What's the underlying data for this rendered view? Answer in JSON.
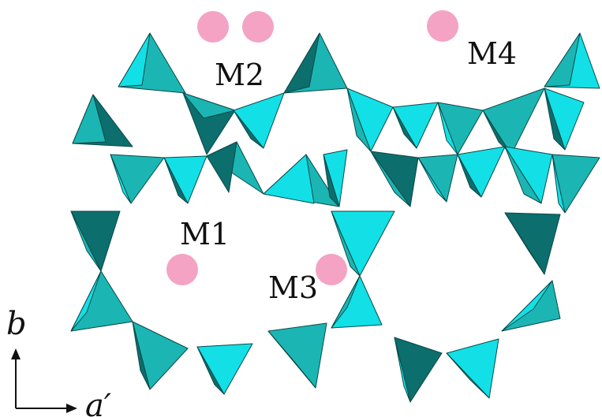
{
  "figure": {
    "colors": {
      "tetra_light": "#12e0e6",
      "tetra_mid": "#1bb6b3",
      "tetra_dark": "#0c6e6d",
      "cation": "#f4a3c4",
      "edge": "#0a4a4a",
      "background": "#ffffff"
    },
    "sites": {
      "m1": "M1",
      "m2": "M2",
      "m3": "M3",
      "m4": "M4"
    },
    "axes": {
      "vertical": "b",
      "horizontal": "a′"
    }
  }
}
